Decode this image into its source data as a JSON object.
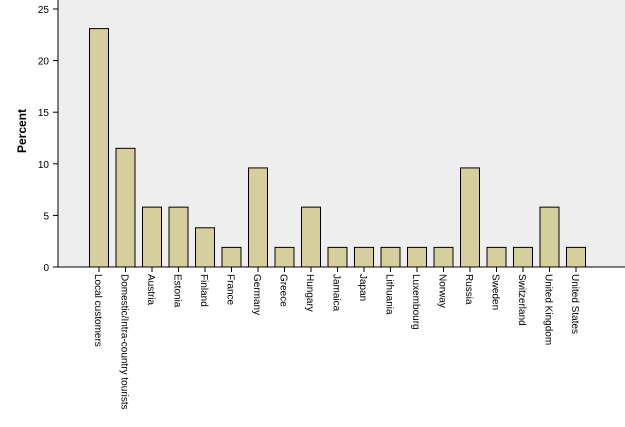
{
  "chart_data": {
    "type": "bar",
    "title": "",
    "xlabel": "",
    "ylabel": "Percent",
    "ylim": [
      0,
      25
    ],
    "yticks": [
      0,
      5,
      10,
      15,
      20,
      25
    ],
    "grid": false,
    "legend": "none",
    "colors": {
      "bar_fill": "#d4cf9c",
      "bar_stroke": "#000000",
      "plot_bg": "#eeeeee",
      "axis": "#000000"
    },
    "categories": [
      "Local customers",
      "Domestic/Intra-country tourists",
      "Austria",
      "Estonia",
      "Finland",
      "France",
      "Germany",
      "Greece",
      "Hungary",
      "Jamaica",
      "Japan",
      "Lithuania",
      "Luxembourg",
      "Norway",
      "Russia",
      "Sweden",
      "Switzerland",
      "United Kingdom",
      "United States"
    ],
    "values": [
      23.1,
      11.5,
      5.8,
      5.8,
      3.8,
      1.9,
      9.6,
      1.9,
      5.8,
      1.9,
      1.9,
      1.9,
      1.9,
      1.9,
      9.6,
      1.9,
      1.9,
      5.8,
      1.9
    ]
  }
}
